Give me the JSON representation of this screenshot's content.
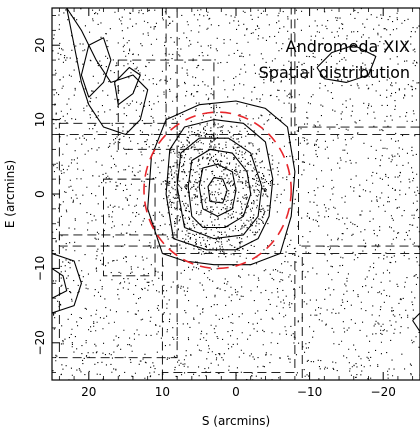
{
  "chart_data": {
    "type": "scatter",
    "title_lines": [
      "Andromeda XIX",
      "Spatial distribution"
    ],
    "xlabel": "S (arcmins)",
    "ylabel": "E (arcmins)",
    "xlim": [
      25,
      -25
    ],
    "ylim": [
      -25,
      25
    ],
    "x_ticks": [
      20,
      10,
      0,
      -10,
      -20
    ],
    "x_tick_labels": [
      "20",
      "10",
      "0",
      "−10",
      "−20"
    ],
    "y_ticks": [
      20,
      10,
      0,
      -10,
      -20
    ],
    "y_tick_labels": [
      "20",
      "10",
      "0",
      "−10",
      "−20"
    ],
    "ellipse": {
      "center": [
        2.5,
        0.5
      ],
      "semi_x": 10.0,
      "semi_y": 10.5,
      "color": "#e8262b",
      "style": "dashed"
    },
    "contours": [
      {
        "level": 1,
        "points": [
          [
            10,
            -8
          ],
          [
            12,
            -2
          ],
          [
            11.5,
            5
          ],
          [
            9.5,
            10
          ],
          [
            5,
            12
          ],
          [
            0,
            12.5
          ],
          [
            -4,
            11.5
          ],
          [
            -7,
            9
          ],
          [
            -8,
            3
          ],
          [
            -7.5,
            -3
          ],
          [
            -6,
            -8
          ],
          [
            -2,
            -9.5
          ],
          [
            3,
            -9.5
          ],
          [
            7,
            -9
          ],
          [
            10,
            -8
          ]
        ]
      },
      {
        "level": 2,
        "points": [
          [
            8.5,
            -6
          ],
          [
            9.5,
            0
          ],
          [
            9,
            6
          ],
          [
            7,
            9
          ],
          [
            3,
            10
          ],
          [
            -1,
            9.5
          ],
          [
            -4,
            7
          ],
          [
            -5,
            2
          ],
          [
            -4.5,
            -3
          ],
          [
            -3,
            -6
          ],
          [
            0,
            -7.5
          ],
          [
            4,
            -7.5
          ],
          [
            8.5,
            -6
          ]
        ]
      },
      {
        "level": 3,
        "points": [
          [
            7,
            -4.5
          ],
          [
            8,
            1
          ],
          [
            7.5,
            5.5
          ],
          [
            5,
            7.5
          ],
          [
            1,
            7.5
          ],
          [
            -2,
            5.5
          ],
          [
            -3.5,
            1
          ],
          [
            -3,
            -3
          ],
          [
            -1,
            -5.5
          ],
          [
            3,
            -6
          ],
          [
            7,
            -4.5
          ]
        ]
      },
      {
        "level": 4,
        "points": [
          [
            6,
            -3
          ],
          [
            6.5,
            1
          ],
          [
            6,
            4.5
          ],
          [
            3.5,
            6
          ],
          [
            0.5,
            5.5
          ],
          [
            -1.5,
            3
          ],
          [
            -2,
            0
          ],
          [
            -1,
            -3
          ],
          [
            1.5,
            -4.5
          ],
          [
            4.5,
            -4.5
          ],
          [
            6,
            -3
          ]
        ]
      },
      {
        "level": 5,
        "points": [
          [
            4.5,
            -2
          ],
          [
            5,
            1
          ],
          [
            4.5,
            3.5
          ],
          [
            2.5,
            4
          ],
          [
            0.5,
            3
          ],
          [
            0,
            0.5
          ],
          [
            0.5,
            -2
          ],
          [
            2.5,
            -3
          ],
          [
            4.5,
            -2
          ]
        ]
      },
      {
        "level": 6,
        "points": [
          [
            3.5,
            -1
          ],
          [
            3.8,
            1
          ],
          [
            3,
            2.2
          ],
          [
            1.8,
            2
          ],
          [
            1.2,
            0.5
          ],
          [
            1.8,
            -1.2
          ],
          [
            3.5,
            -1
          ]
        ]
      },
      {
        "level": 1,
        "points": [
          [
            23,
            25
          ],
          [
            22,
            20
          ],
          [
            21,
            15
          ],
          [
            20,
            12
          ],
          [
            18,
            9
          ],
          [
            15,
            8
          ],
          [
            13,
            10
          ],
          [
            12,
            14
          ],
          [
            14,
            16
          ],
          [
            17,
            15
          ],
          [
            19,
            18
          ],
          [
            21,
            22
          ],
          [
            23,
            25
          ]
        ]
      },
      {
        "level": 1,
        "points": [
          [
            20,
            13
          ],
          [
            18,
            15
          ],
          [
            17,
            18
          ],
          [
            18,
            21
          ],
          [
            20,
            20
          ],
          [
            21,
            16
          ],
          [
            20,
            13
          ]
        ]
      },
      {
        "level": 1,
        "points": [
          [
            16,
            12
          ],
          [
            14,
            13.5
          ],
          [
            13,
            16
          ],
          [
            14.5,
            17
          ],
          [
            16.5,
            15
          ],
          [
            16,
            12
          ]
        ]
      },
      {
        "level": 1,
        "points": [
          [
            -11,
            17
          ],
          [
            -13,
            19
          ],
          [
            -16,
            20
          ],
          [
            -19,
            18.5
          ],
          [
            -18,
            16
          ],
          [
            -15,
            15
          ],
          [
            -12,
            15.5
          ],
          [
            -11,
            17
          ]
        ]
      },
      {
        "level": 1,
        "points": [
          [
            25,
            -8
          ],
          [
            22,
            -9
          ],
          [
            21,
            -12
          ],
          [
            22,
            -15
          ],
          [
            25,
            -16
          ]
        ]
      },
      {
        "level": 2,
        "points": [
          [
            25,
            -10
          ],
          [
            23.5,
            -11
          ],
          [
            23,
            -13
          ],
          [
            25,
            -14
          ]
        ]
      },
      {
        "level": 1,
        "points": [
          [
            -24,
            -17
          ],
          [
            -25,
            -18.5
          ],
          [
            -25,
            -16
          ],
          [
            -24,
            -17
          ]
        ]
      }
    ],
    "grid_on": false,
    "point_density": "dense uniform background"
  }
}
